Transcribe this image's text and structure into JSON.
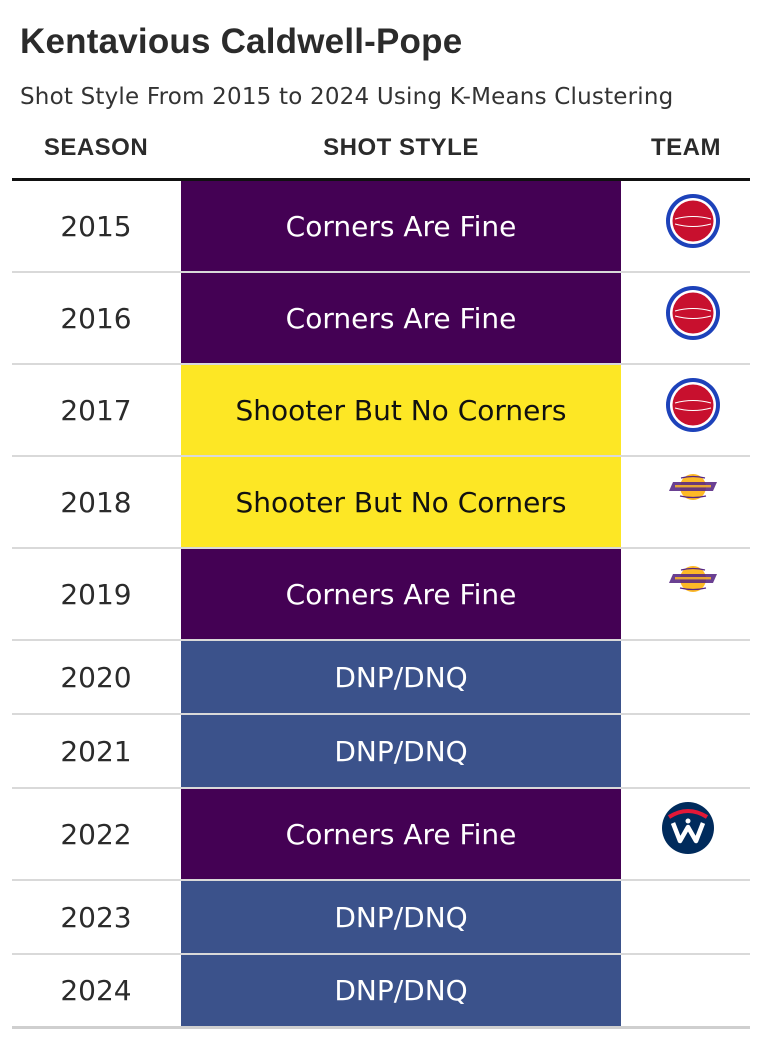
{
  "title": "Kentavious Caldwell-Pope",
  "subtitle": "Shot Style From 2015 to 2024 Using K-Means Clustering",
  "headers": {
    "season": "SEASON",
    "style": "SHOT STYLE",
    "team": "TEAM"
  },
  "styles": {
    "Corners Are Fine": {
      "bg": "#440154",
      "fg": "#ffffff"
    },
    "Shooter But No Corners": {
      "bg": "#fde725",
      "fg": "#111111"
    },
    "DNP/DNQ": {
      "bg": "#3b528b",
      "fg": "#ffffff"
    }
  },
  "logo_colors": {
    "pistons": {
      "red": "#c8102e",
      "blue": "#1d42ba"
    },
    "lakers": {
      "purple": "#552583",
      "gold": "#fdb927"
    },
    "wizards": {
      "navy": "#002b5c",
      "red": "#e31837"
    }
  },
  "chart_data": {
    "type": "table",
    "columns": [
      "SEASON",
      "SHOT STYLE",
      "TEAM"
    ],
    "rows": [
      {
        "season": "2015",
        "style": "Corners Are Fine",
        "team": "pistons-logo"
      },
      {
        "season": "2016",
        "style": "Corners Are Fine",
        "team": "pistons-logo"
      },
      {
        "season": "2017",
        "style": "Shooter But No Corners",
        "team": "pistons-logo"
      },
      {
        "season": "2018",
        "style": "Shooter But No Corners",
        "team": "lakers-logo"
      },
      {
        "season": "2019",
        "style": "Corners Are Fine",
        "team": "lakers-logo"
      },
      {
        "season": "2020",
        "style": "DNP/DNQ",
        "team": ""
      },
      {
        "season": "2021",
        "style": "DNP/DNQ",
        "team": ""
      },
      {
        "season": "2022",
        "style": "Corners Are Fine",
        "team": "wizards-logo"
      },
      {
        "season": "2023",
        "style": "DNP/DNQ",
        "team": ""
      },
      {
        "season": "2024",
        "style": "DNP/DNQ",
        "team": ""
      }
    ]
  }
}
